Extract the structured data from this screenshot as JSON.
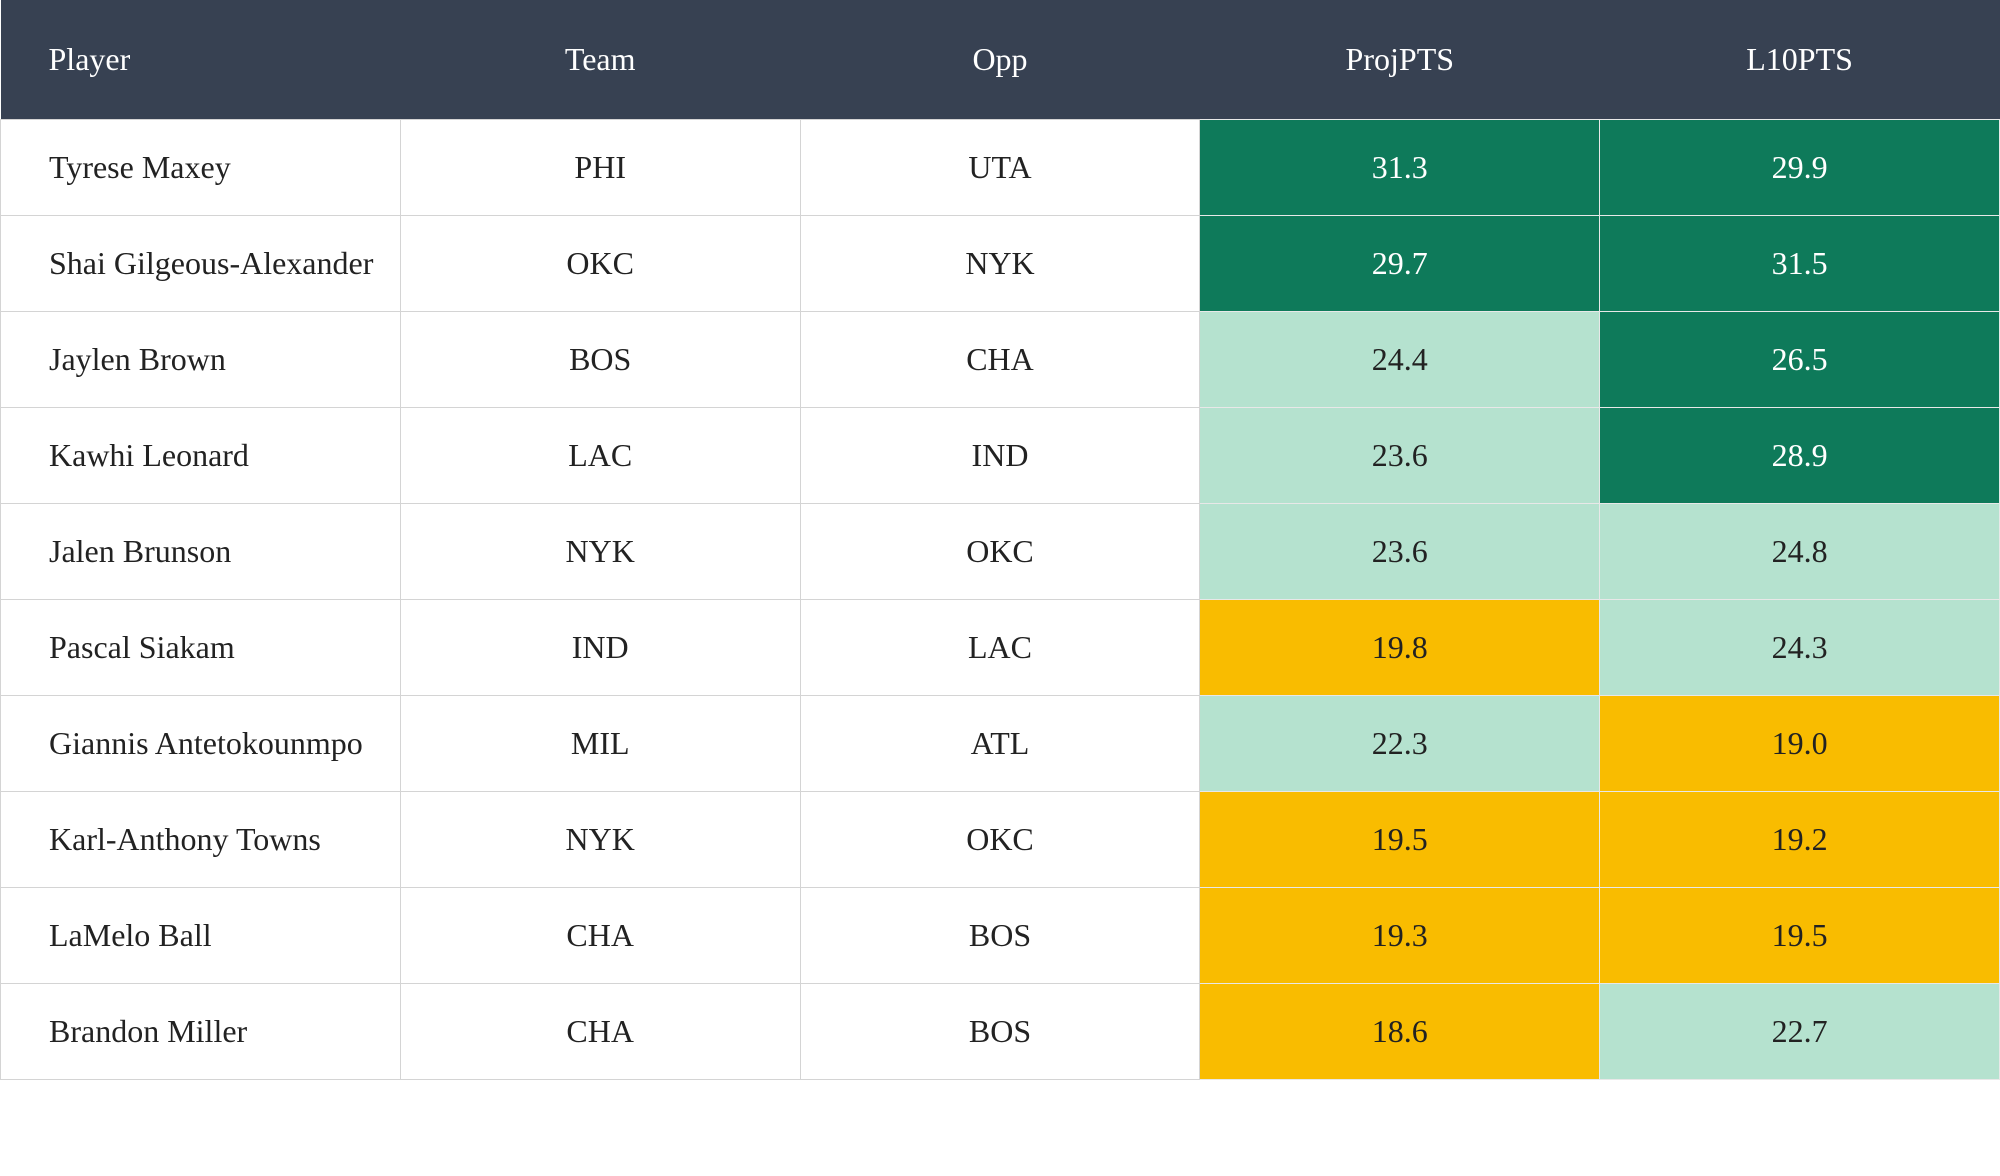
{
  "table": {
    "columns": [
      "Player",
      "Team",
      "Opp",
      "ProjPTS",
      "L10PTS"
    ],
    "rows": [
      [
        "Tyrese Maxey",
        "PHI",
        "UTA",
        "31.3",
        "29.9"
      ],
      [
        "Shai Gilgeous-Alexander",
        "OKC",
        "NYK",
        "29.7",
        "31.5"
      ],
      [
        "Jaylen Brown",
        "BOS",
        "CHA",
        "24.4",
        "26.5"
      ],
      [
        "Kawhi Leonard",
        "LAC",
        "IND",
        "23.6",
        "28.9"
      ],
      [
        "Jalen Brunson",
        "NYK",
        "OKC",
        "23.6",
        "24.8"
      ],
      [
        "Pascal Siakam",
        "IND",
        "LAC",
        "19.8",
        "24.3"
      ],
      [
        "Giannis Antetokounmpo",
        "MIL",
        "ATL",
        "22.3",
        "19.0"
      ],
      [
        "Karl-Anthony Towns",
        "NYK",
        "OKC",
        "19.5",
        "19.2"
      ],
      [
        "LaMelo Ball",
        "CHA",
        "BOS",
        "19.3",
        "19.5"
      ],
      [
        "Brandon Miller",
        "CHA",
        "BOS",
        "18.6",
        "22.7"
      ]
    ],
    "cell_fills": [
      [
        "#0e7a5a",
        "#0e7a5a"
      ],
      [
        "#0e7a5a",
        "#0e7a5a"
      ],
      [
        "#b5e2cf",
        "#0e7a5a"
      ],
      [
        "#b5e2cf",
        "#0e7a5a"
      ],
      [
        "#b5e2cf",
        "#b5e2cf"
      ],
      [
        "#f9bc00",
        "#b5e2cf"
      ],
      [
        "#b5e2cf",
        "#f9bc00"
      ],
      [
        "#f9bc00",
        "#f9bc00"
      ],
      [
        "#f9bc00",
        "#f9bc00"
      ],
      [
        "#f9bc00",
        "#b5e2cf"
      ]
    ]
  }
}
